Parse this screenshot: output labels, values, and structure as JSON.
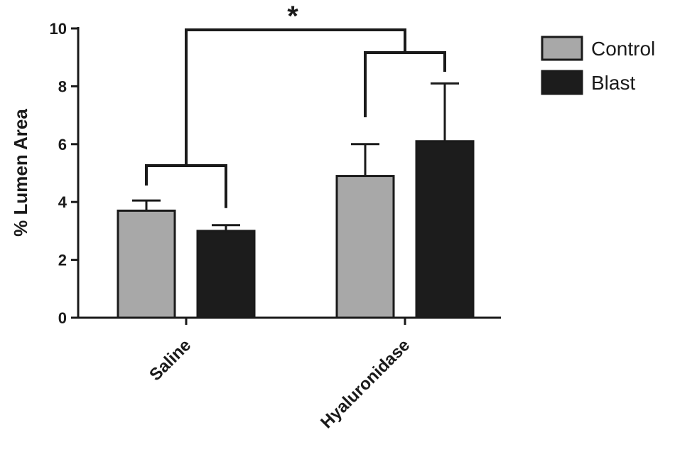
{
  "chart_data": {
    "type": "bar",
    "title": "",
    "xlabel": "",
    "ylabel": "% Lumen Area",
    "ylim": [
      0,
      10
    ],
    "yticks": [
      "0",
      "2",
      "4",
      "6",
      "8",
      "10"
    ],
    "categories": [
      "Saline",
      "Hyaluronidase"
    ],
    "series": [
      {
        "name": "Control",
        "color": "#a8a8a8",
        "values": [
          3.7,
          4.9
        ],
        "errors": [
          0.35,
          1.1
        ]
      },
      {
        "name": "Blast",
        "color": "#1c1c1c",
        "values": [
          3.0,
          6.1
        ],
        "errors": [
          0.2,
          2.0
        ]
      }
    ],
    "legend": {
      "position": "top-right",
      "items": [
        "Control",
        "Blast"
      ]
    },
    "grid": false,
    "annotations": [
      {
        "text": "*",
        "meaning": "significance between Saline and Hyaluronidase groups"
      }
    ]
  }
}
